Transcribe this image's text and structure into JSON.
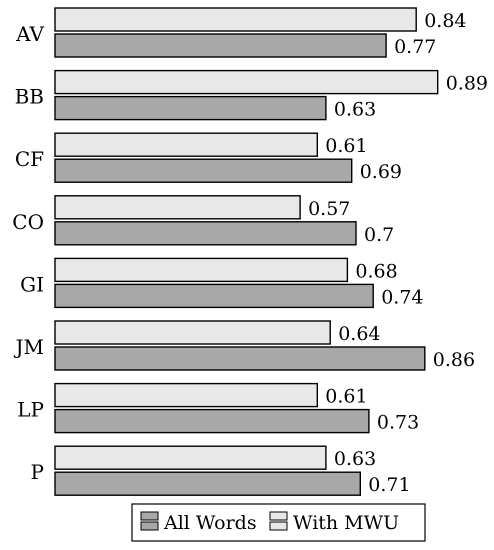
{
  "chart_data": {
    "type": "bar",
    "orientation": "horizontal",
    "categories": [
      "AV",
      "BB",
      "CF",
      "CO",
      "GI",
      "JM",
      "LP",
      "P"
    ],
    "series": [
      {
        "name": "With MWU",
        "color": "#e8e8e8",
        "values": [
          0.84,
          0.89,
          0.61,
          0.57,
          0.68,
          0.64,
          0.61,
          0.63
        ],
        "value_labels": [
          "0.84",
          "0.89",
          "0.61",
          "0.57",
          "0.68",
          "0.64",
          "0.61",
          "0.63"
        ]
      },
      {
        "name": "All Words",
        "color": "#a8a8a8",
        "values": [
          0.77,
          0.63,
          0.69,
          0.7,
          0.74,
          0.86,
          0.73,
          0.71
        ],
        "value_labels": [
          "0.77",
          "0.63",
          "0.69",
          "0.7",
          "0.74",
          "0.86",
          "0.73",
          "0.71"
        ]
      }
    ],
    "legend": {
      "position": "bottom-right",
      "items": [
        {
          "label": "All Words",
          "color": "#a8a8a8",
          "icon": "bar-swatch-icon"
        },
        {
          "label": "With MWU",
          "color": "#e8e8e8",
          "icon": "bar-swatch-icon"
        }
      ]
    },
    "grid": false
  }
}
